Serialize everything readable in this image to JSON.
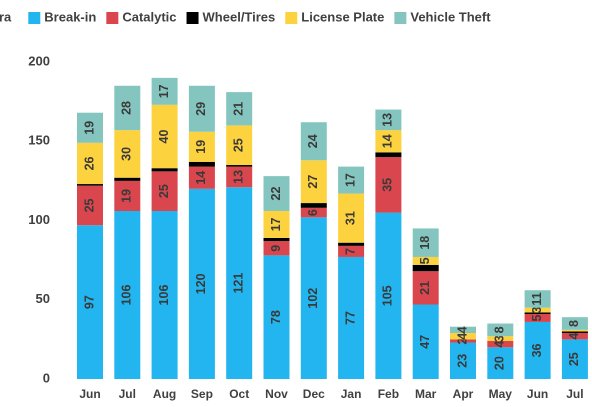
{
  "chart_data": {
    "type": "stacked_bar",
    "legend_extra": [
      "ra"
    ],
    "categories": [
      "Jun",
      "Jul",
      "Aug",
      "Sep",
      "Oct",
      "Nov",
      "Dec",
      "Jan",
      "Feb",
      "Mar",
      "Apr",
      "May",
      "Jun",
      "Jul"
    ],
    "series": [
      {
        "name": "Break-in",
        "color": "#22b5ef",
        "values": [
          97,
          106,
          106,
          120,
          121,
          78,
          102,
          77,
          105,
          47,
          23,
          20,
          36,
          25
        ]
      },
      {
        "name": "Catalytic",
        "color": "#d9464d",
        "values": [
          25,
          19,
          25,
          14,
          13,
          9,
          6,
          7,
          35,
          21,
          2,
          4,
          5,
          4
        ]
      },
      {
        "name": "Wheel/Tires",
        "color": "#000000",
        "show_labels": false,
        "values": [
          1,
          2,
          2,
          3,
          1,
          2,
          3,
          2,
          3,
          4,
          0,
          0,
          1,
          1
        ]
      },
      {
        "name": "License Plate",
        "color": "#fdd23f",
        "values": [
          26,
          30,
          40,
          19,
          25,
          17,
          27,
          31,
          14,
          5,
          4,
          3,
          3,
          1
        ]
      },
      {
        "name": "Vehicle Theft",
        "color": "#84c6bf",
        "values": [
          19,
          28,
          17,
          29,
          21,
          22,
          24,
          17,
          13,
          18,
          4,
          8,
          11,
          8
        ]
      }
    ],
    "ylim": [
      0,
      200
    ],
    "yticks": [
      0,
      50,
      100,
      150,
      200
    ],
    "grid": false
  }
}
